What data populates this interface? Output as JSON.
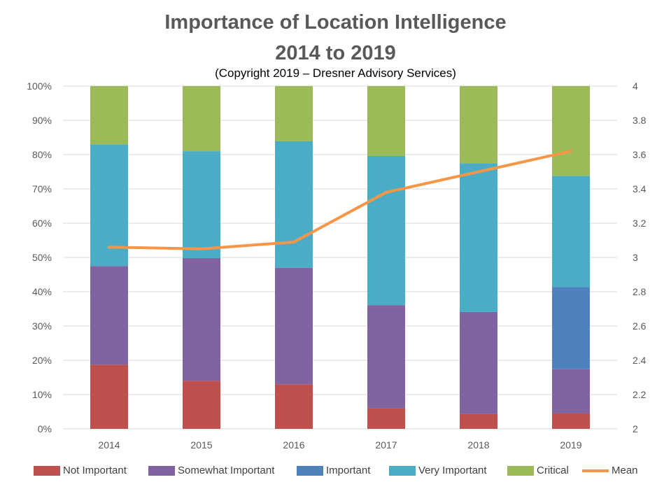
{
  "chart_data": {
    "type": "bar",
    "stacked": true,
    "title_line1": "Importance of Location Intelligence",
    "title_line2": "2014 to 2019",
    "subtitle": "(Copyright 2019 – Dresner Advisory Services)",
    "categories": [
      "2014",
      "2015",
      "2016",
      "2017",
      "2018",
      "2019"
    ],
    "ylim": [
      0,
      100
    ],
    "y_ticks": [
      "0%",
      "10%",
      "20%",
      "30%",
      "40%",
      "50%",
      "60%",
      "70%",
      "80%",
      "90%",
      "100%"
    ],
    "y2lim": [
      2,
      4
    ],
    "y2_ticks": [
      "2",
      "2.2",
      "2.4",
      "2.6",
      "2.8",
      "3",
      "3.2",
      "3.4",
      "3.6",
      "3.8",
      "4"
    ],
    "series": [
      {
        "name": "Not Important",
        "color": "#c0504d",
        "values": [
          18.7,
          14.0,
          13.0,
          6.0,
          4.3,
          4.5
        ]
      },
      {
        "name": "Somewhat Important",
        "color": "#8064a2",
        "values": [
          28.8,
          35.8,
          34.0,
          30.1,
          29.8,
          12.9
        ]
      },
      {
        "name": "Important",
        "color": "#4f81bd",
        "values": [
          0,
          0,
          0,
          0,
          0,
          24.0
        ]
      },
      {
        "name": "Very Important",
        "color": "#4bacc6",
        "values": [
          35.5,
          31.2,
          36.9,
          43.5,
          43.4,
          32.4
        ]
      },
      {
        "name": "Critical",
        "color": "#9bbb59",
        "values": [
          17.0,
          19.0,
          16.1,
          20.4,
          22.5,
          26.2
        ]
      }
    ],
    "line_series": {
      "name": "Mean",
      "color": "#f79646",
      "axis": "secondary",
      "values": [
        3.06,
        3.05,
        3.09,
        3.38,
        3.5,
        3.62
      ]
    },
    "grid": true,
    "legend_position": "bottom"
  }
}
